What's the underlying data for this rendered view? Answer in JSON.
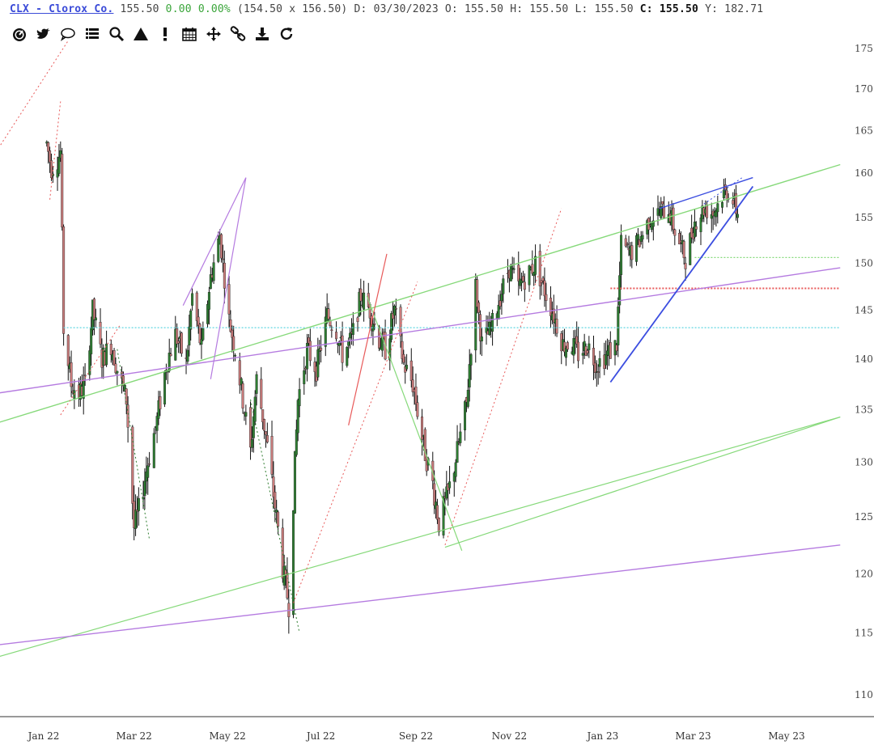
{
  "header": {
    "symbol_label": "CLX - Clorox Co.",
    "last": "155.50",
    "change": "0.00",
    "change_pct": "0.00%",
    "range": "(154.50 x 156.50)",
    "date_label": "D:",
    "date": "03/30/2023",
    "open_label": "O:",
    "open": "155.50",
    "high_label": "H:",
    "high": "155.50",
    "low_label": "L:",
    "low": "155.50",
    "close_label": "C:",
    "close": "155.50",
    "y_label": "Y:",
    "y": "182.71"
  },
  "toolbar": {
    "tools": [
      "dashboard-icon",
      "twitter-icon",
      "comment-icon",
      "list-icon",
      "search-icon",
      "triangle-icon",
      "alert-icon",
      "calendar-icon",
      "move-icon",
      "link-icon",
      "download-icon",
      "refresh-icon"
    ]
  },
  "colors": {
    "candle_up": "#2e7d32",
    "candle_down": "#c97b7b",
    "wick": "#111111",
    "green_line": "#86d97a",
    "purple_line": "#b57be0",
    "blue_line": "#3c4ee0",
    "red_dotted": "#e85a5a",
    "cyan_dotted": "#5fd6e0",
    "axis_text": "#3a7fb0"
  },
  "chart_data": {
    "type": "candlestick",
    "x_ticks": [
      "Jan 22",
      "Mar 22",
      "May 22",
      "Jul 22",
      "Sep 22",
      "Nov 22",
      "Jan 23",
      "Mar 23",
      "May 23"
    ],
    "y_ticks": [
      175,
      170,
      165,
      160,
      155,
      150,
      145,
      140,
      135,
      130,
      125,
      120,
      115,
      110
    ],
    "scale": "log",
    "price_path": [
      [
        "2022-01-03",
        163.5
      ],
      [
        "2022-01-06",
        160.5
      ],
      [
        "2022-01-10",
        161.5
      ],
      [
        "2022-01-12",
        162.5
      ],
      [
        "2022-01-14",
        143.0
      ],
      [
        "2022-01-19",
        137.5
      ],
      [
        "2022-01-24",
        136.5
      ],
      [
        "2022-01-28",
        137.5
      ],
      [
        "2022-02-02",
        145.0
      ],
      [
        "2022-02-08",
        140.0
      ],
      [
        "2022-02-14",
        141.5
      ],
      [
        "2022-02-18",
        139.0
      ],
      [
        "2022-02-24",
        136.0
      ],
      [
        "2022-03-01",
        124.0
      ],
      [
        "2022-03-04",
        125.5
      ],
      [
        "2022-03-10",
        130.0
      ],
      [
        "2022-03-16",
        134.0
      ],
      [
        "2022-03-22",
        139.5
      ],
      [
        "2022-03-28",
        142.5
      ],
      [
        "2022-04-04",
        139.5
      ],
      [
        "2022-04-08",
        146.5
      ],
      [
        "2022-04-14",
        141.0
      ],
      [
        "2022-04-20",
        148.5
      ],
      [
        "2022-04-26",
        153.0
      ],
      [
        "2022-05-02",
        144.0
      ],
      [
        "2022-05-06",
        141.0
      ],
      [
        "2022-05-12",
        135.0
      ],
      [
        "2022-05-16",
        131.0
      ],
      [
        "2022-05-20",
        138.0
      ],
      [
        "2022-05-26",
        132.5
      ],
      [
        "2022-06-01",
        126.0
      ],
      [
        "2022-06-07",
        119.5
      ],
      [
        "2022-06-10",
        117.5
      ],
      [
        "2022-06-16",
        136.0
      ],
      [
        "2022-06-22",
        141.0
      ],
      [
        "2022-06-28",
        139.0
      ],
      [
        "2022-07-05",
        144.5
      ],
      [
        "2022-07-11",
        143.0
      ],
      [
        "2022-07-15",
        140.5
      ],
      [
        "2022-07-21",
        142.0
      ],
      [
        "2022-07-27",
        146.5
      ],
      [
        "2022-08-02",
        145.0
      ],
      [
        "2022-08-08",
        142.0
      ],
      [
        "2022-08-12",
        141.0
      ],
      [
        "2022-08-18",
        145.0
      ],
      [
        "2022-08-24",
        139.5
      ],
      [
        "2022-08-30",
        137.5
      ],
      [
        "2022-09-06",
        131.5
      ],
      [
        "2022-09-12",
        128.0
      ],
      [
        "2022-09-16",
        124.5
      ],
      [
        "2022-09-22",
        127.0
      ],
      [
        "2022-09-28",
        131.0
      ],
      [
        "2022-10-04",
        135.5
      ],
      [
        "2022-10-10",
        147.5
      ],
      [
        "2022-10-14",
        141.5
      ],
      [
        "2022-10-20",
        143.0
      ],
      [
        "2022-10-26",
        146.5
      ],
      [
        "2022-11-01",
        149.5
      ],
      [
        "2022-11-07",
        147.5
      ],
      [
        "2022-11-14",
        149.0
      ],
      [
        "2022-11-18",
        150.0
      ],
      [
        "2022-11-23",
        147.5
      ],
      [
        "2022-11-30",
        144.5
      ],
      [
        "2022-12-06",
        141.5
      ],
      [
        "2022-12-12",
        141.5
      ],
      [
        "2022-12-16",
        140.5
      ],
      [
        "2022-12-22",
        141.5
      ],
      [
        "2022-12-28",
        139.5
      ],
      [
        "2023-01-04",
        140.5
      ],
      [
        "2023-01-10",
        141.5
      ],
      [
        "2023-01-13",
        152.0
      ],
      [
        "2023-01-19",
        151.0
      ],
      [
        "2023-01-25",
        152.5
      ],
      [
        "2023-02-01",
        155.0
      ],
      [
        "2023-02-07",
        155.5
      ],
      [
        "2023-02-13",
        156.0
      ],
      [
        "2023-02-17",
        153.5
      ],
      [
        "2023-02-24",
        150.5
      ],
      [
        "2023-03-02",
        154.5
      ],
      [
        "2023-03-08",
        156.0
      ],
      [
        "2023-03-14",
        155.5
      ],
      [
        "2023-03-20",
        157.5
      ],
      [
        "2023-03-24",
        158.0
      ],
      [
        "2023-03-30",
        155.5
      ]
    ]
  }
}
